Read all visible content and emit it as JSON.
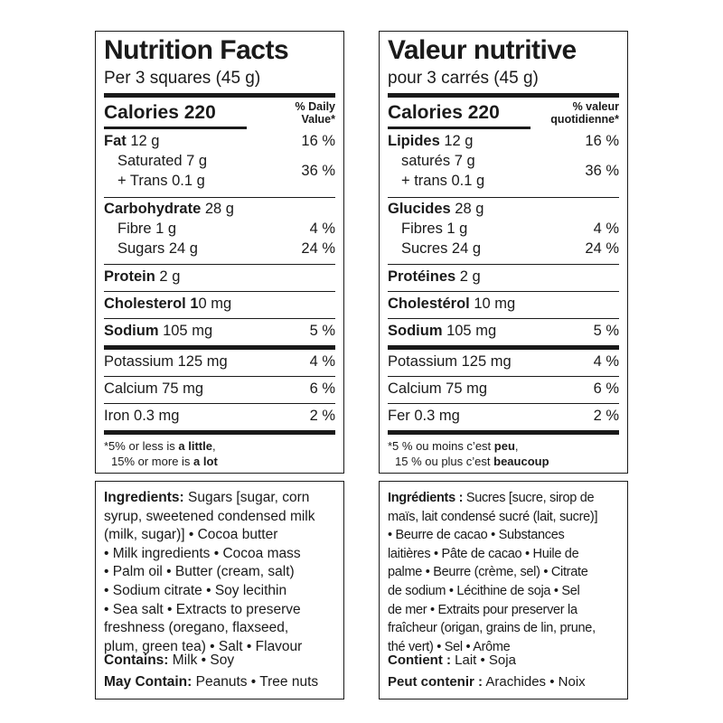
{
  "en": {
    "title": "Nutrition Facts",
    "serving": "Per 3 squares (45 g)",
    "calories": "Calories 220",
    "dv_line1": "% Daily",
    "dv_line2": "Value*",
    "fat_label": "Fat",
    "fat_amount": " 12 g",
    "fat_pct": "16 %",
    "saturated": "Saturated 7 g",
    "trans": "+ Trans 0.1 g",
    "sat_pct": "36 %",
    "carb_label": "Carbohydrate",
    "carb_amount": " 28 g",
    "fibre": "Fibre 1 g",
    "fibre_pct": "4 %",
    "sugars": "Sugars 24 g",
    "sugars_pct": "24 %",
    "protein_label": "Protein",
    "protein_amount": " 2 g",
    "chol_label": "Cholesterol 1",
    "chol_amount": "0 mg",
    "sodium_label": "Sodium",
    "sodium_amount": " 105 mg",
    "sodium_pct": "5 %",
    "potassium": "Potassium 125 mg",
    "potassium_pct": "4 %",
    "calcium": "Calcium 75 mg",
    "calcium_pct": "6 %",
    "iron": "Iron 0.3 mg",
    "iron_pct": "2 %",
    "foot1_pre": "*5% or less is ",
    "foot1_bold": "a little",
    "foot1_post": ",",
    "foot2_pre": "15% or more is ",
    "foot2_bold": "a lot",
    "ingr_label": "Ingredients:",
    "ingr_lines": [
      " Sugars [sugar, corn",
      "syrup, sweetened condensed milk",
      "(milk, sugar)] • Cocoa butter",
      "• Milk ingredients • Cocoa mass",
      "• Palm oil • Butter (cream, salt)",
      "• Sodium citrate • Soy lecithin",
      "• Sea salt • Extracts to preserve",
      "freshness (oregano, flaxseed,",
      "plum, green tea) • Salt • Flavour"
    ],
    "contains_label": "Contains:",
    "contains_value": " Milk • Soy",
    "may_label": "May Contain:",
    "may_value": " Peanuts • Tree nuts"
  },
  "fr": {
    "title": "Valeur nutritive",
    "serving": "pour 3 carrés (45 g)",
    "calories": "Calories 220",
    "dv_line1": "% valeur",
    "dv_line2": "quotidienne*",
    "fat_label": "Lipides",
    "fat_amount": " 12 g",
    "fat_pct": "16 %",
    "saturated": "saturés 7 g",
    "trans": "+ trans 0.1 g",
    "sat_pct": "36 %",
    "carb_label": "Glucides",
    "carb_amount": " 28 g",
    "fibre": "Fibres 1 g",
    "fibre_pct": "4 %",
    "sugars": "Sucres 24 g",
    "sugars_pct": "24 %",
    "protein_label": "Protéines",
    "protein_amount": " 2 g",
    "chol_label": "Cholestérol",
    "chol_amount": " 10 mg",
    "sodium_label": "Sodium",
    "sodium_amount": " 105 mg",
    "sodium_pct": "5 %",
    "potassium": "Potassium 125 mg",
    "potassium_pct": "4 %",
    "calcium": "Calcium 75 mg",
    "calcium_pct": "6 %",
    "iron": "Fer 0.3 mg",
    "iron_pct": "2 %",
    "foot1_pre": "*5 % ou moins c’est ",
    "foot1_bold": "peu",
    "foot1_post": ",",
    "foot2_pre": "15 % ou plus c’est ",
    "foot2_bold": "beaucoup",
    "ingr_label": "Ingrédients :",
    "ingr_lines": [
      " Sucres [sucre, sirop de",
      "maïs, lait condensé sucré (lait, sucre)]",
      "• Beurre de cacao • Substances",
      "laitières • Pâte de cacao • Huile de",
      "palme • Beurre (crème, sel) • Citrate",
      "de sodium • Lécithine de soja • Sel",
      "de mer • Extraits pour preserver la",
      "fraîcheur (origan, grains de lin, prune,",
      "thé vert) • Sel • Arôme"
    ],
    "contains_label": "Contient :",
    "contains_value": " Lait • Soja",
    "may_label": "Peut contenir :",
    "may_value": " Arachides • Noix"
  }
}
